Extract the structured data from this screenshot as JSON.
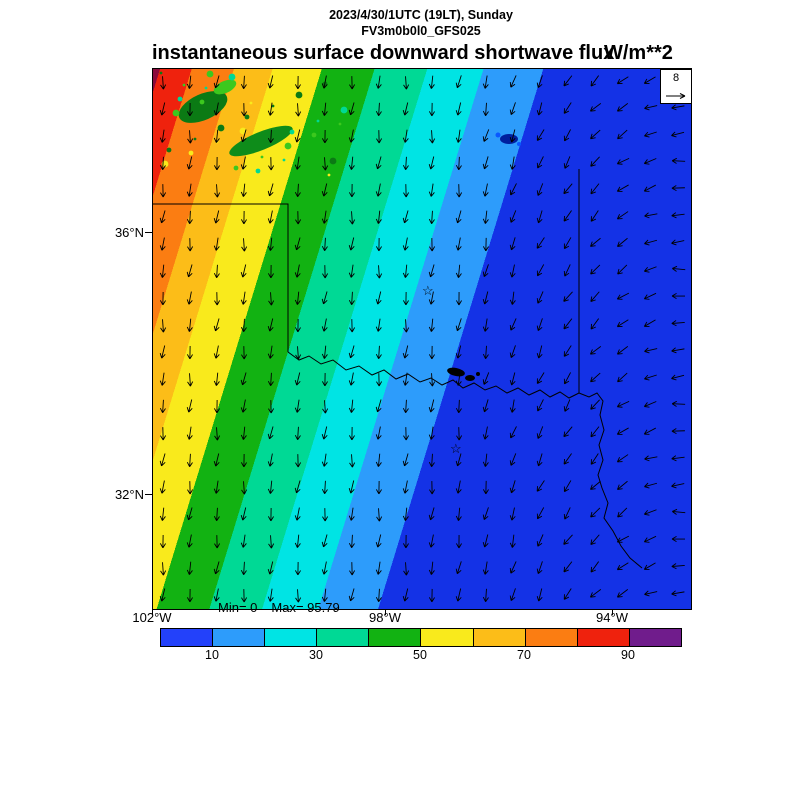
{
  "header": {
    "datetime": "2023/4/30/1UTC (19LT), Sunday",
    "model": "FV3m0b0l0_GFS025",
    "title": "instantaneous surface downward shortwave flux",
    "units": "W/m**2"
  },
  "stats": {
    "min_label": "Min= 0",
    "max_label": "Max= 95.79"
  },
  "chart_data": {
    "type": "heatmap",
    "title": "instantaneous surface downward shortwave flux",
    "units": "W/m**2",
    "datetime": "2023/4/30/1UTC (19LT), Sunday",
    "model_run": "FV3m0b0l0_GFS025",
    "min": 0,
    "max": 95.79,
    "x_axis": {
      "labels": [
        "102°W",
        "98°W",
        "94°W"
      ]
    },
    "y_axis": {
      "labels": [
        "36°N",
        "32°N"
      ]
    },
    "legend_position": "bottom",
    "grid": false,
    "colorbar": {
      "range": [
        0,
        100
      ],
      "ticks": [
        10,
        30,
        50,
        70,
        90
      ],
      "segments": [
        {
          "from": 0,
          "to": 10,
          "color": "#2341fa"
        },
        {
          "from": 10,
          "to": 20,
          "color": "#2d9cfb"
        },
        {
          "from": 20,
          "to": 30,
          "color": "#00e4e4"
        },
        {
          "from": 30,
          "to": 40,
          "color": "#00d995"
        },
        {
          "from": 40,
          "to": 50,
          "color": "#12b212"
        },
        {
          "from": 50,
          "to": 60,
          "color": "#f9ea1c"
        },
        {
          "from": 60,
          "to": 70,
          "color": "#fcbd18"
        },
        {
          "from": 70,
          "to": 80,
          "color": "#fb7d12"
        },
        {
          "from": 80,
          "to": 90,
          "color": "#ef220d"
        },
        {
          "from": 90,
          "to": 100,
          "color": "#701c8c"
        }
      ]
    },
    "bands": [
      {
        "value_range": [
          90,
          100
        ],
        "color": "#8c0a3c",
        "from_pct": 0,
        "to_pct": 1
      },
      {
        "value_range": [
          80,
          90
        ],
        "color": "#ef220d",
        "from_pct": 1,
        "to_pct": 5.5
      },
      {
        "value_range": [
          70,
          80
        ],
        "color": "#fb7d12",
        "from_pct": 5.5,
        "to_pct": 11.5
      },
      {
        "value_range": [
          60,
          70
        ],
        "color": "#fcbd18",
        "from_pct": 11.5,
        "to_pct": 17
      },
      {
        "value_range": [
          50,
          60
        ],
        "color": "#f9ea1c",
        "from_pct": 17,
        "to_pct": 24
      },
      {
        "value_range": [
          40,
          50
        ],
        "color": "#12b212",
        "from_pct": 24,
        "to_pct": 31.5
      },
      {
        "value_range": [
          30,
          40
        ],
        "color": "#00d995",
        "from_pct": 31.5,
        "to_pct": 39
      },
      {
        "value_range": [
          20,
          30
        ],
        "color": "#00e4e4",
        "from_pct": 39,
        "to_pct": 47
      },
      {
        "value_range": [
          10,
          20
        ],
        "color": "#2d9cfb",
        "from_pct": 47,
        "to_pct": 55.5
      },
      {
        "value_range": [
          0,
          10
        ],
        "color": "#1432e6",
        "from_pct": 55.5,
        "to_pct": 100
      }
    ],
    "wind": {
      "reference_value": "8"
    }
  }
}
